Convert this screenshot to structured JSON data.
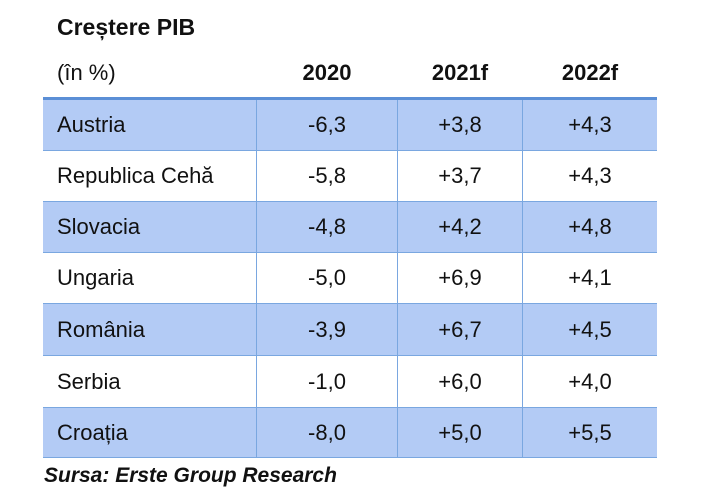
{
  "title": "Creștere PIB",
  "chart_data": {
    "type": "table",
    "title": "Creștere PIB",
    "unit_label": "(în %)",
    "columns": [
      "2020",
      "2021f",
      "2022f"
    ],
    "rows": [
      {
        "country": "Austria",
        "values": [
          "-6,3",
          "+3,8",
          "+4,3"
        ]
      },
      {
        "country": "Republica Cehă",
        "values": [
          "-5,8",
          "+3,7",
          "+4,3"
        ]
      },
      {
        "country": "Slovacia",
        "values": [
          "-4,8",
          "+4,2",
          "+4,8"
        ]
      },
      {
        "country": "Ungaria",
        "values": [
          "-5,0",
          "+6,9",
          "+4,1"
        ]
      },
      {
        "country": "România",
        "values": [
          "-3,9",
          "+6,7",
          "+4,5"
        ]
      },
      {
        "country": "Serbia",
        "values": [
          "-1,0",
          "+6,0",
          "+4,0"
        ]
      },
      {
        "country": "Croația",
        "values": [
          "-8,0",
          "+5,0",
          "+5,5"
        ]
      }
    ]
  },
  "source": "Sursa: Erste Group Research",
  "colors": {
    "row_shade": "#b3cbf5",
    "border": "#5b8fd6"
  }
}
